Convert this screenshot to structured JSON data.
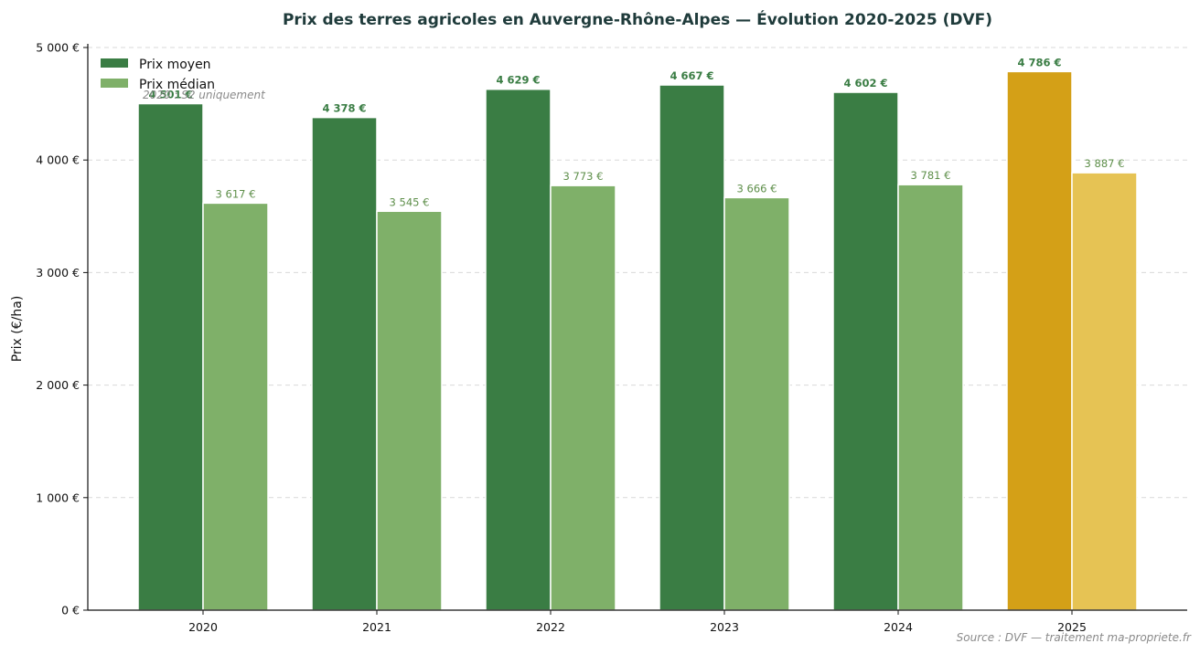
{
  "chart_data": {
    "type": "bar",
    "title": "Prix des terres agricoles en Auvergne-Rhône-Alpes — Évolution 2020-2025 (DVF)",
    "ylabel": "Prix (€/ha)",
    "xlabel": "",
    "ylim": [
      0,
      5000
    ],
    "yticks": [
      {
        "value": 0,
        "label": "0 €"
      },
      {
        "value": 1000,
        "label": "1 000 €"
      },
      {
        "value": 2000,
        "label": "2 000 €"
      },
      {
        "value": 3000,
        "label": "3 000 €"
      },
      {
        "value": 4000,
        "label": "4 000 €"
      },
      {
        "value": 5000,
        "label": "5 000 €"
      }
    ],
    "grid": true,
    "legend_position": "top-left",
    "categories": [
      "2020",
      "2021",
      "2022",
      "2023",
      "2024",
      "2025"
    ],
    "series": [
      {
        "name": "Prix moyen",
        "values": [
          4501,
          4378,
          4629,
          4667,
          4602,
          4786
        ],
        "labels": [
          "4 501 €",
          "4 378 €",
          "4 629 €",
          "4 667 €",
          "4 602 €",
          "4 786 €"
        ],
        "color": "#3a7d44",
        "highlight_color": "#d4a017",
        "label_color": "#3a7d44"
      },
      {
        "name": "Prix médian",
        "values": [
          3617,
          3545,
          3773,
          3666,
          3781,
          3887
        ],
        "labels": [
          "3 617 €",
          "3 545 €",
          "3 773 €",
          "3 666 €",
          "3 781 €",
          "3 887 €"
        ],
        "color": "#7fb069",
        "highlight_color": "#e6c354",
        "label_color": "#5e8f4a"
      }
    ],
    "highlight_category": "2025",
    "annotation": "2020 : S2 uniquement",
    "source": "Source : DVF — traitement ma-propriete.fr"
  }
}
